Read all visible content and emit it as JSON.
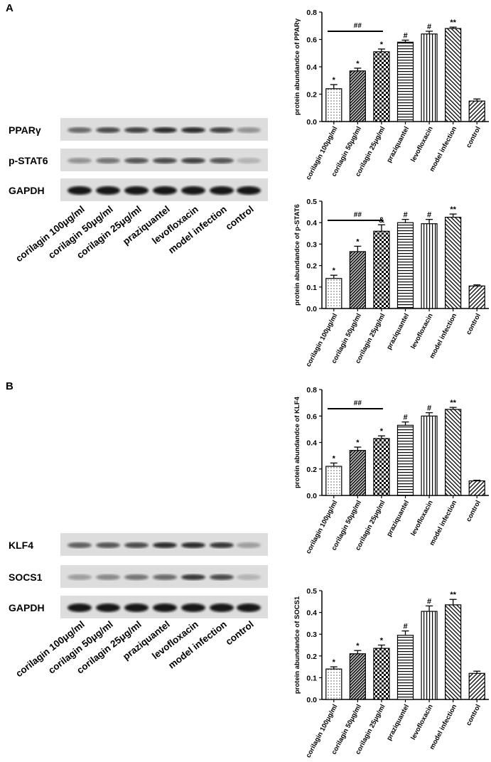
{
  "panels": [
    {
      "label": "A",
      "blot_rows": [
        "PPARγ",
        "p-STAT6",
        "GAPDH"
      ],
      "lanes": [
        "corilagin 100μg/ml",
        "corilagin 50μg/ml",
        "corilagin 25μg/ml",
        "praziquantel",
        "levofloxacin",
        "model infection",
        "control"
      ]
    },
    {
      "label": "B",
      "blot_rows": [
        "KLF4",
        "SOCS1",
        "GAPDH"
      ],
      "lanes": [
        "corilagin 100μg/ml",
        "corilagin 50μg/ml",
        "corilagin 25μg/ml",
        "praziquantel",
        "levofloxacin",
        "model infection",
        "control"
      ]
    }
  ],
  "chart_data": [
    {
      "type": "bar",
      "ylabel": "protein abundandce of PPARγ",
      "categories": [
        "corilagin 100μg/ml",
        "corilagin 50μg/ml",
        "corilagin 25μg/ml",
        "praziquantel",
        "levofloxacin",
        "model infection",
        "control"
      ],
      "values": [
        0.24,
        0.37,
        0.51,
        0.58,
        0.64,
        0.68,
        0.15
      ],
      "errors": [
        0.03,
        0.02,
        0.02,
        0.015,
        0.02,
        0.01,
        0.015
      ],
      "annotations": [
        "*",
        "*",
        "*",
        "#",
        "#",
        "**",
        null
      ],
      "bracket_label": "##",
      "ylim": [
        0,
        0.8
      ],
      "yticks": [
        {
          "value": 0,
          "label": "0.0"
        },
        0.2,
        0.4,
        0.6,
        0.8
      ]
    },
    {
      "type": "bar",
      "ylabel": "protein abundandce of p-STAT6",
      "categories": [
        "corilagin 100μg/ml",
        "corilagin 50μg/ml",
        "corilagin 25μg/ml",
        "praziquantel",
        "levofloxacin",
        "model infection",
        "control"
      ],
      "values": [
        0.14,
        0.265,
        0.36,
        0.4,
        0.395,
        0.425,
        0.105
      ],
      "errors": [
        0.015,
        0.025,
        0.03,
        0.015,
        0.02,
        0.015,
        0.005
      ],
      "annotations": [
        "*",
        "*",
        "&",
        "#",
        "#",
        "**",
        null
      ],
      "bracket_label": "##",
      "ylim": [
        0,
        0.5
      ],
      "yticks": [
        {
          "value": 0,
          "label": "0.0"
        },
        0.1,
        0.2,
        0.3,
        0.4,
        0.5
      ]
    },
    {
      "type": "bar",
      "ylabel": "protein abundandce of KLF4",
      "categories": [
        "corilagin 100μg/ml",
        "corilagin 50μg/ml",
        "corilagin 25μg/ml",
        "praziquantel",
        "levofloxacin",
        "model infection",
        "control"
      ],
      "values": [
        0.22,
        0.34,
        0.43,
        0.53,
        0.6,
        0.65,
        0.11
      ],
      "errors": [
        0.025,
        0.025,
        0.02,
        0.025,
        0.025,
        0.015,
        0.005
      ],
      "annotations": [
        "*",
        "*",
        "*",
        "#",
        "#",
        "**",
        null
      ],
      "bracket_label": "##",
      "ylim": [
        0,
        0.8
      ],
      "yticks": [
        {
          "value": 0,
          "label": "0.0"
        },
        0.2,
        0.4,
        0.6,
        0.8
      ]
    },
    {
      "type": "bar",
      "ylabel": "protein abundandce of SOCS1",
      "categories": [
        "corilagin 100μg/ml",
        "corilagin 50μg/ml",
        "corilagin 25μg/ml",
        "praziquantel",
        "levofloxacin",
        "model infection",
        "control"
      ],
      "values": [
        0.14,
        0.21,
        0.235,
        0.295,
        0.405,
        0.435,
        0.12
      ],
      "errors": [
        0.01,
        0.015,
        0.015,
        0.02,
        0.025,
        0.025,
        0.01
      ],
      "annotations": [
        "*",
        "*",
        "*",
        "#",
        "#",
        "**",
        null
      ],
      "ylim": [
        0,
        0.5
      ],
      "yticks": [
        {
          "value": 0,
          "label": "0.0"
        },
        0.1,
        0.2,
        0.3,
        0.4,
        0.5
      ]
    }
  ]
}
